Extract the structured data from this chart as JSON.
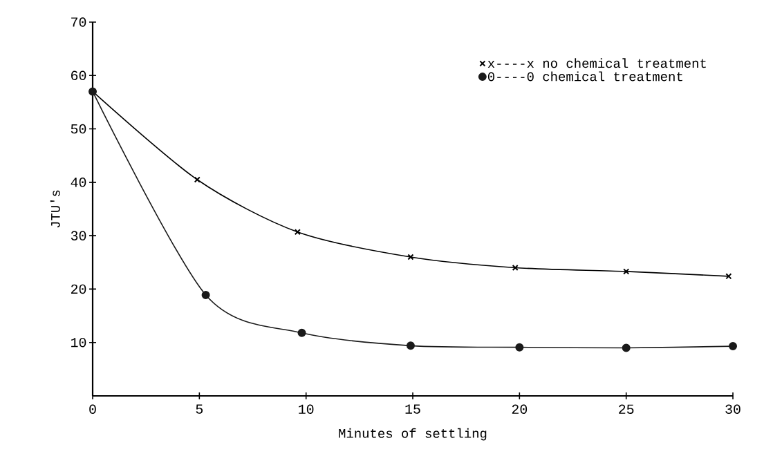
{
  "chart_data": {
    "type": "line",
    "xlabel": "Minutes of settling",
    "ylabel": "JTU's",
    "xlim": [
      0,
      30
    ],
    "ylim": [
      0,
      70
    ],
    "xticks": [
      0,
      5,
      10,
      15,
      20,
      25,
      30
    ],
    "yticks": [
      10,
      20,
      30,
      40,
      50,
      60,
      70
    ],
    "legend": "top right",
    "series": [
      {
        "name": "x----x no chemical treatment",
        "color": "#000000",
        "marker": "cross",
        "x": [
          0,
          4.9,
          9.6,
          14.9,
          19.8,
          25.0,
          29.8
        ],
        "values": [
          57,
          40.5,
          30.7,
          26.0,
          24.0,
          23.3,
          22.4
        ]
      },
      {
        "name": "0----0 chemical treatment",
        "color": "#1a1a1a",
        "marker": "circle",
        "x": [
          0,
          5.3,
          9.8,
          14.9,
          20.0,
          25.0,
          30.0
        ],
        "values": [
          57,
          18.9,
          11.8,
          9.4,
          9.1,
          9.0,
          9.3
        ]
      }
    ]
  }
}
